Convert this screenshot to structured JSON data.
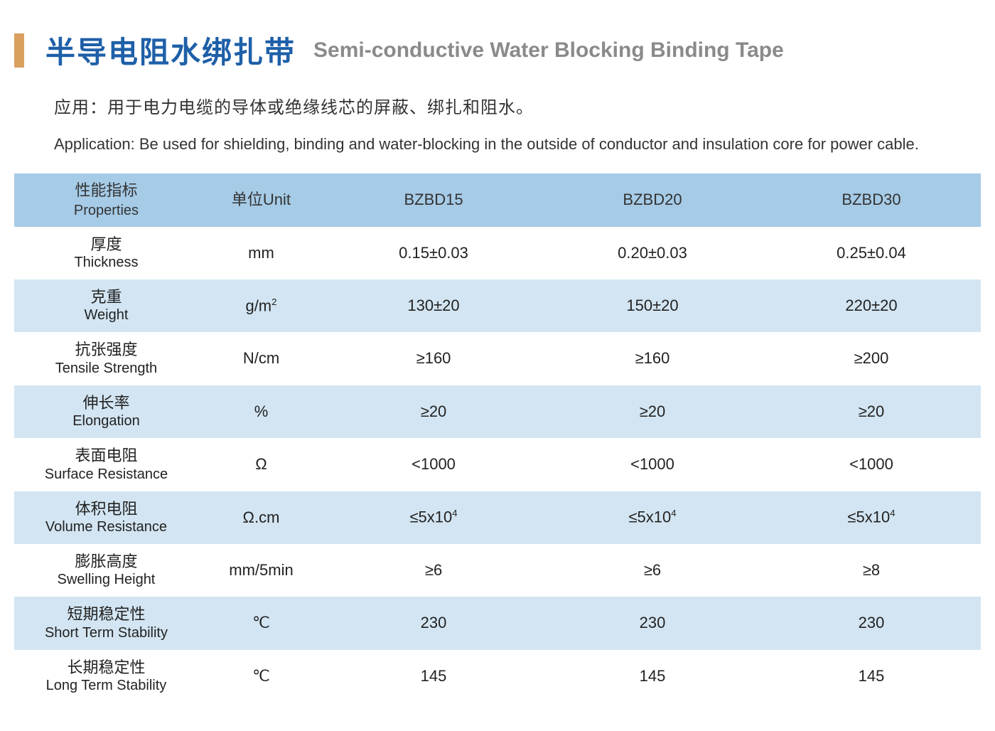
{
  "colors": {
    "title": "#1e5fa8",
    "subtitle": "#8a8a8a",
    "bar": "#d9a05f",
    "header_bg": "#a6cbe7",
    "row_blue": "#d3e5f2",
    "row_white": "#ffffff",
    "text": "#333333"
  },
  "title": {
    "zh": "半导电阻水绑扎带",
    "en": "Semi-conductive Water Blocking Binding Tape"
  },
  "desc": {
    "zh": "应用：用于电力电缆的导体或绝缘线芯的屏蔽、绑扎和阻水。",
    "en": "Application: Be used for shielding, binding and water-blocking in the outside of conductor and insulation core for power cable."
  },
  "table": {
    "columns": [
      {
        "zh": "性能指标",
        "en": "Properties"
      },
      {
        "label": "单位Unit"
      },
      {
        "label": "BZBD15"
      },
      {
        "label": "BZBD20"
      },
      {
        "label": "BZBD30"
      }
    ],
    "col_widths": [
      "19%",
      "13%",
      "22.6%",
      "22.6%",
      "22.6%"
    ],
    "rows": [
      {
        "band": "white",
        "prop_zh": "厚度",
        "prop_en": "Thickness",
        "unit": "mm",
        "v": [
          "0.15±0.03",
          "0.20±0.03",
          "0.25±0.04"
        ]
      },
      {
        "band": "blue",
        "prop_zh": "克重",
        "prop_en": "Weight",
        "unit_html": "g/m<sup>2</sup>",
        "v": [
          "130±20",
          "150±20",
          "220±20"
        ]
      },
      {
        "band": "white",
        "prop_zh": "抗张强度",
        "prop_en": "Tensile Strength",
        "unit": "N/cm",
        "v": [
          "≥160",
          "≥160",
          "≥200"
        ]
      },
      {
        "band": "blue",
        "prop_zh": "伸长率",
        "prop_en": "Elongation",
        "unit": "%",
        "v": [
          "≥20",
          "≥20",
          "≥20"
        ]
      },
      {
        "band": "white",
        "prop_zh": "表面电阻",
        "prop_en": "Surface Resistance",
        "unit": "Ω",
        "v": [
          "<1000",
          "<1000",
          "<1000"
        ]
      },
      {
        "band": "blue",
        "prop_zh": "体积电阻",
        "prop_en": "Volume Resistance",
        "unit": "Ω.cm",
        "v_html": [
          "≤5x10<sup>4</sup>",
          "≤5x10<sup>4</sup>",
          "≤5x10<sup>4</sup>"
        ]
      },
      {
        "band": "white",
        "prop_zh": "膨胀高度",
        "prop_en": "Swelling Height",
        "unit": "mm/5min",
        "v": [
          "≥6",
          "≥6",
          "≥8"
        ]
      },
      {
        "band": "blue",
        "prop_zh": "短期稳定性",
        "prop_en": "Short Term Stability",
        "unit": "℃",
        "v": [
          "230",
          "230",
          "230"
        ]
      },
      {
        "band": "white",
        "prop_zh": "长期稳定性",
        "prop_en": "Long Term Stability",
        "unit": "℃",
        "v": [
          "145",
          "145",
          "145"
        ]
      }
    ]
  }
}
